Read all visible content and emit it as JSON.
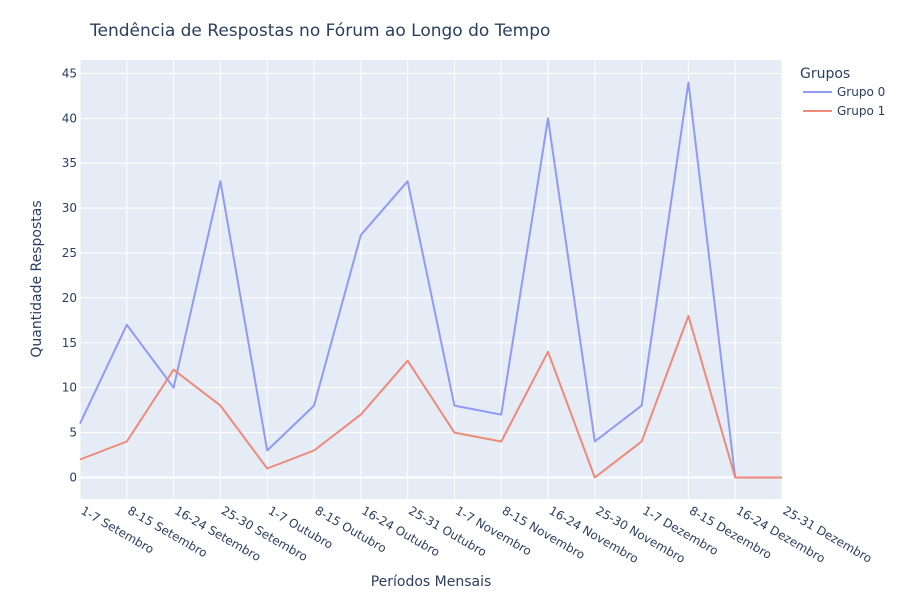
{
  "chart_data": {
    "type": "line",
    "title": "Tendência de Respostas no Fórum ao Longo do Tempo",
    "xlabel": "Períodos Mensais",
    "ylabel": "Quantidade Respostas",
    "categories": [
      "1-7 Setembro",
      "8-15 Setembro",
      "16-24 Setembro",
      "25-30 Setembro",
      "1-7 Outubro",
      "8-15 Outubro",
      "16-24 Outubro",
      "25-31 Outubro",
      "1-7 Novembro",
      "8-15 Novembro",
      "16-24 Novembro",
      "25-30 Novembro",
      "1-7 Dezembro",
      "8-15 Dezembro",
      "16-24 Dezembro",
      "25-31 Dezembro"
    ],
    "series": [
      {
        "name": "Grupo 0",
        "color": "#8f9bf5",
        "values": [
          6,
          17,
          10,
          33,
          3,
          8,
          27,
          33,
          8,
          7,
          40,
          4,
          8,
          44,
          0,
          0
        ]
      },
      {
        "name": "Grupo 1",
        "color": "#ef8a7b",
        "values": [
          2,
          4,
          12,
          8,
          1,
          3,
          7,
          13,
          5,
          4,
          14,
          0,
          4,
          18,
          0,
          0
        ]
      }
    ],
    "ylim": [
      -2.4,
      46.5
    ],
    "yticks": [
      0,
      5,
      10,
      15,
      20,
      25,
      30,
      35,
      40,
      45
    ],
    "legend_title": "Grupos",
    "legend_position": "top-right",
    "grid": true,
    "plot_background": "#e5ecf6"
  }
}
